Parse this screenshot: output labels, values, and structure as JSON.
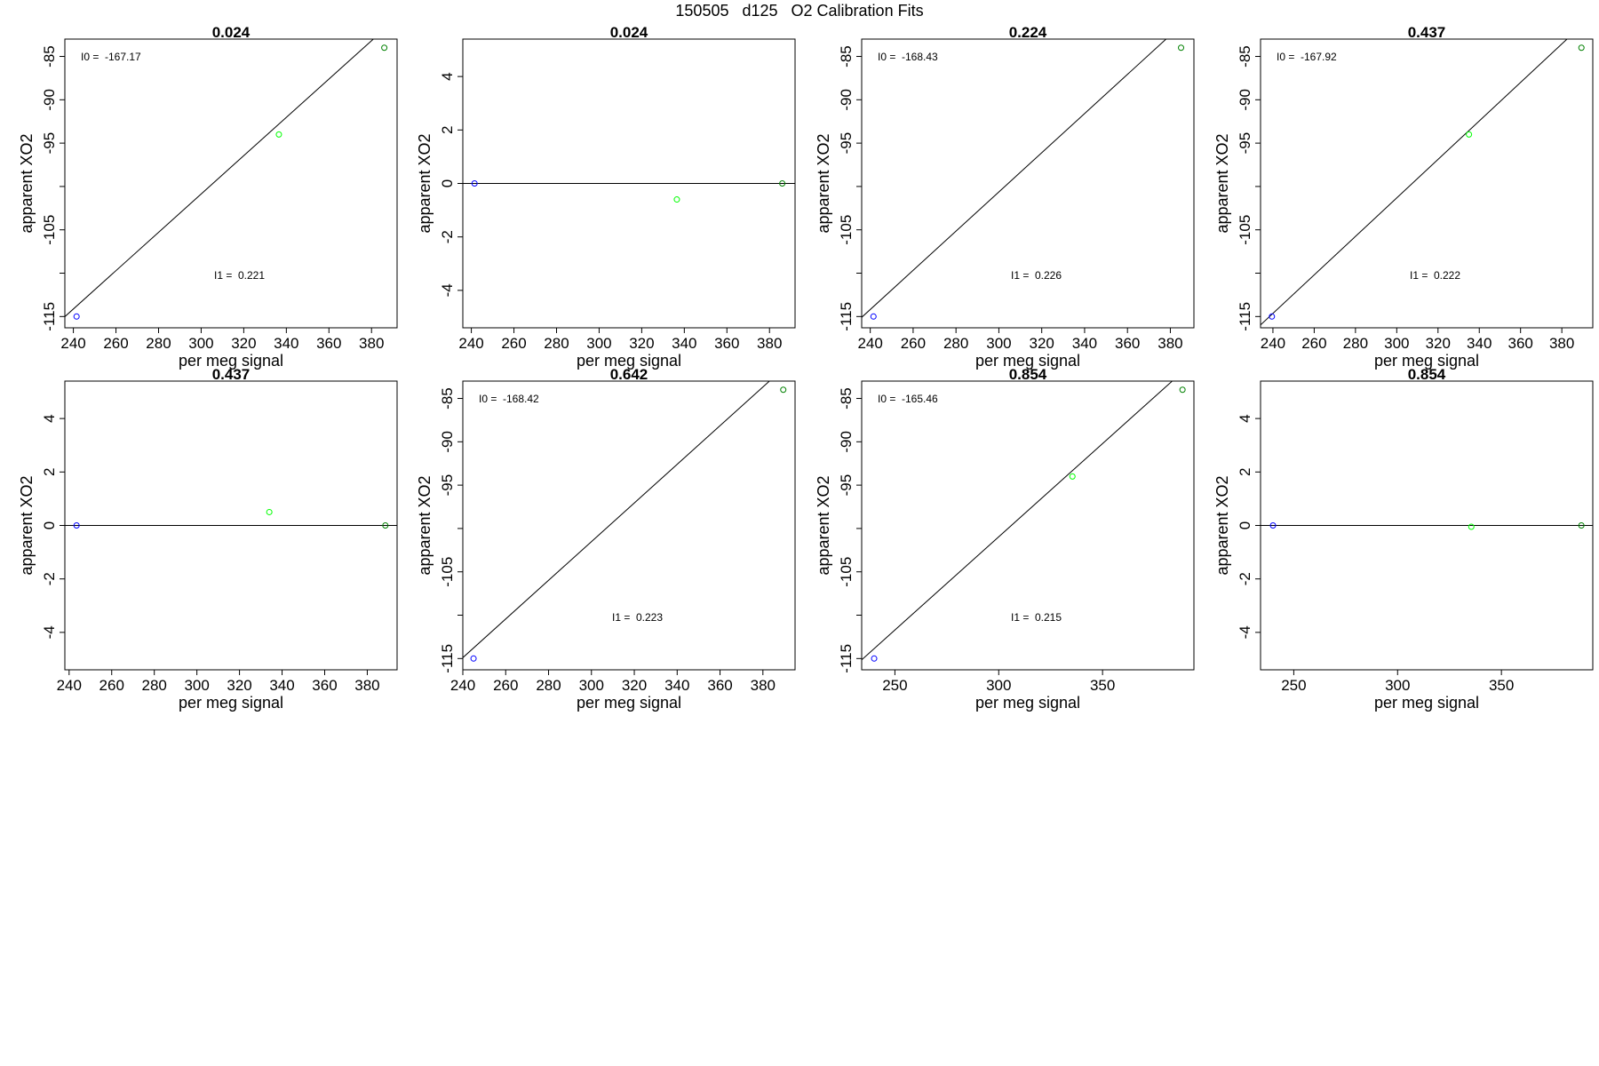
{
  "page": {
    "title": "150505   d125   O2 Calibration Fits"
  },
  "chart_data": [
    {
      "type": "scatter",
      "title": "0.024",
      "xlabel": "per meg signal",
      "ylabel": "apparent XO2",
      "xlim": [
        236,
        392
      ],
      "ylim": [
        -116.3,
        -83.0
      ],
      "xticks": [
        240,
        260,
        280,
        300,
        320,
        340,
        360,
        380
      ],
      "yticks": [
        -115,
        -110,
        -105,
        -100,
        -95,
        -90,
        -85
      ],
      "ytick_labels": [
        "-115",
        "",
        "-105",
        "",
        "-95",
        "-90",
        "-85"
      ],
      "points": [
        {
          "x": 241.5,
          "y": -115.0,
          "color": "#0000ff"
        },
        {
          "x": 336.5,
          "y": -94.0,
          "color": "#00ff00"
        },
        {
          "x": 386.0,
          "y": -84.0,
          "color": "#008000"
        }
      ],
      "fit_line": {
        "slope": 0.221,
        "intercept": -167.17
      },
      "annotations": [
        {
          "label": "I0 =",
          "value": "-167.17"
        },
        {
          "label": "I1 =",
          "value": "0.221"
        }
      ]
    },
    {
      "type": "scatter",
      "title": "0.024",
      "xlabel": "per meg signal",
      "ylabel": "apparent XO2",
      "xlim": [
        236,
        392
      ],
      "ylim": [
        -5.4,
        5.4
      ],
      "xticks": [
        240,
        260,
        280,
        300,
        320,
        340,
        360,
        380
      ],
      "yticks": [
        -4,
        -2,
        0,
        2,
        4
      ],
      "ytick_labels": [
        "-4",
        "-2",
        "0",
        "2",
        "4"
      ],
      "points": [
        {
          "x": 241.5,
          "y": 0.0,
          "color": "#0000ff"
        },
        {
          "x": 336.5,
          "y": -0.6,
          "color": "#00ff00"
        },
        {
          "x": 386.0,
          "y": 0.0,
          "color": "#008000"
        }
      ],
      "fit_line": {
        "slope": 0,
        "intercept": 0
      },
      "annotations": []
    },
    {
      "type": "scatter",
      "title": "0.224",
      "xlabel": "per meg signal",
      "ylabel": "apparent XO2",
      "xlim": [
        236,
        391
      ],
      "ylim": [
        -116.3,
        -83.0
      ],
      "xticks": [
        240,
        260,
        280,
        300,
        320,
        340,
        360,
        380
      ],
      "yticks": [
        -115,
        -110,
        -105,
        -100,
        -95,
        -90,
        -85
      ],
      "ytick_labels": [
        "-115",
        "",
        "-105",
        "",
        "-95",
        "-90",
        "-85"
      ],
      "points": [
        {
          "x": 241.5,
          "y": -115.0,
          "color": "#0000ff"
        },
        {
          "x": 385.0,
          "y": -84.0,
          "color": "#008000"
        }
      ],
      "fit_line": {
        "slope": 0.226,
        "intercept": -168.43
      },
      "annotations": [
        {
          "label": "I0 =",
          "value": "-168.43"
        },
        {
          "label": "I1 =",
          "value": "0.226"
        }
      ]
    },
    {
      "type": "scatter",
      "title": "0.437",
      "xlabel": "per meg signal",
      "ylabel": "apparent XO2",
      "xlim": [
        234,
        395
      ],
      "ylim": [
        -116.3,
        -83.0
      ],
      "xticks": [
        240,
        260,
        280,
        300,
        320,
        340,
        360,
        380
      ],
      "yticks": [
        -115,
        -110,
        -105,
        -100,
        -95,
        -90,
        -85
      ],
      "ytick_labels": [
        "-115",
        "",
        "-105",
        "",
        "-95",
        "-90",
        "-85"
      ],
      "points": [
        {
          "x": 239.5,
          "y": -115.0,
          "color": "#0000ff"
        },
        {
          "x": 335.0,
          "y": -94.0,
          "color": "#00ff00"
        },
        {
          "x": 389.5,
          "y": -84.0,
          "color": "#008000"
        }
      ],
      "fit_line": {
        "slope": 0.222,
        "intercept": -167.92
      },
      "annotations": [
        {
          "label": "I0 =",
          "value": "-167.92"
        },
        {
          "label": "I1 =",
          "value": "0.222"
        }
      ]
    },
    {
      "type": "scatter",
      "title": "0.437",
      "xlabel": "per meg signal",
      "ylabel": "apparent XO2",
      "xlim": [
        238,
        394
      ],
      "ylim": [
        -5.4,
        5.4
      ],
      "xticks": [
        240,
        260,
        280,
        300,
        320,
        340,
        360,
        380
      ],
      "yticks": [
        -4,
        -2,
        0,
        2,
        4
      ],
      "ytick_labels": [
        "-4",
        "-2",
        "0",
        "2",
        "4"
      ],
      "points": [
        {
          "x": 243.5,
          "y": 0.0,
          "color": "#0000ff"
        },
        {
          "x": 334.0,
          "y": 0.5,
          "color": "#00ff00"
        },
        {
          "x": 388.5,
          "y": 0.0,
          "color": "#008000"
        }
      ],
      "fit_line": {
        "slope": 0,
        "intercept": 0
      },
      "annotations": []
    },
    {
      "type": "scatter",
      "title": "0.642",
      "xlabel": "per meg signal",
      "ylabel": "apparent XO2",
      "xlim": [
        240,
        395
      ],
      "ylim": [
        -116.3,
        -83.0
      ],
      "xticks": [
        240,
        260,
        280,
        300,
        320,
        340,
        360,
        380
      ],
      "yticks": [
        -115,
        -110,
        -105,
        -100,
        -95,
        -90,
        -85
      ],
      "ytick_labels": [
        "-115",
        "",
        "-105",
        "",
        "-95",
        "-90",
        "-85"
      ],
      "points": [
        {
          "x": 245.0,
          "y": -115.0,
          "color": "#0000ff"
        },
        {
          "x": 389.5,
          "y": -84.0,
          "color": "#008000"
        }
      ],
      "fit_line": {
        "slope": 0.223,
        "intercept": -168.42
      },
      "annotations": [
        {
          "label": "I0 =",
          "value": "-168.42"
        },
        {
          "label": "I1 =",
          "value": "0.223"
        }
      ]
    },
    {
      "type": "scatter",
      "title": "0.854",
      "xlabel": "per meg signal",
      "ylabel": "apparent XO2",
      "xlim": [
        234,
        394
      ],
      "ylim": [
        -116.3,
        -83.0
      ],
      "xticks": [
        250,
        300,
        350
      ],
      "yticks": [
        -115,
        -110,
        -105,
        -100,
        -95,
        -90,
        -85
      ],
      "ytick_labels": [
        "-115",
        "",
        "-105",
        "",
        "-95",
        "-90",
        "-85"
      ],
      "points": [
        {
          "x": 240.0,
          "y": -115.0,
          "color": "#0000ff"
        },
        {
          "x": 335.5,
          "y": -94.0,
          "color": "#00ff00"
        },
        {
          "x": 388.5,
          "y": -84.0,
          "color": "#008000"
        }
      ],
      "fit_line": {
        "slope": 0.215,
        "intercept": -165.46
      },
      "annotations": [
        {
          "label": "I0 =",
          "value": "-165.46"
        },
        {
          "label": "I1 =",
          "value": "0.215"
        }
      ]
    },
    {
      "type": "scatter",
      "title": "0.854",
      "xlabel": "per meg signal",
      "ylabel": "apparent XO2",
      "xlim": [
        234,
        394
      ],
      "ylim": [
        -5.4,
        5.4
      ],
      "xticks": [
        250,
        300,
        350
      ],
      "yticks": [
        -4,
        -2,
        0,
        2,
        4
      ],
      "ytick_labels": [
        "-4",
        "-2",
        "0",
        "2",
        "4"
      ],
      "points": [
        {
          "x": 240.0,
          "y": 0.0,
          "color": "#0000ff"
        },
        {
          "x": 335.5,
          "y": -0.05,
          "color": "#00ff00"
        },
        {
          "x": 388.5,
          "y": 0.0,
          "color": "#008000"
        }
      ],
      "fit_line": {
        "slope": 0,
        "intercept": 0
      },
      "annotations": []
    }
  ]
}
